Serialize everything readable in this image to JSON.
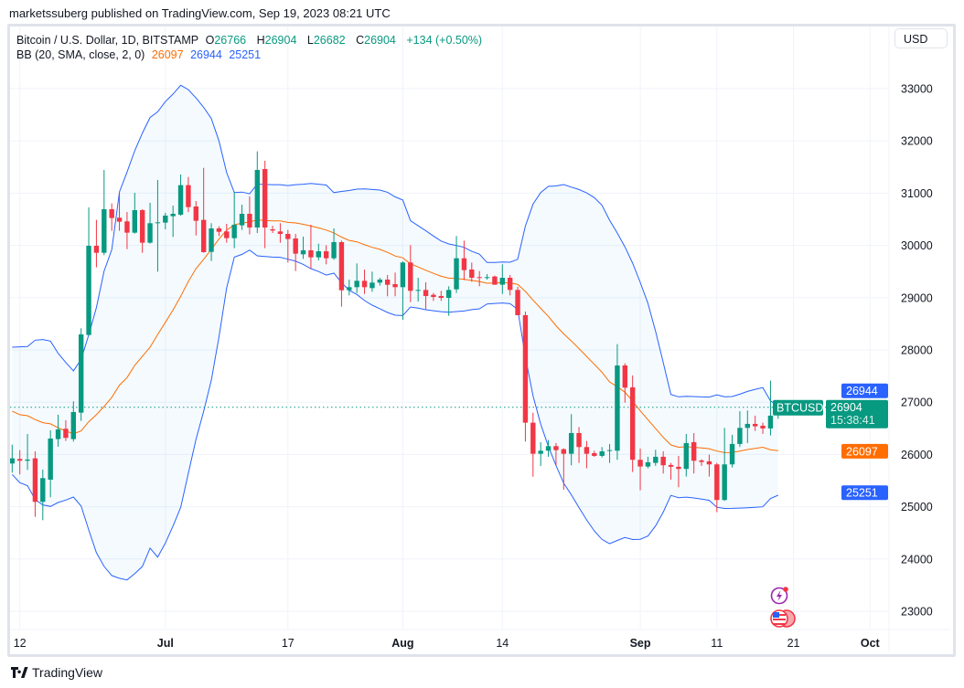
{
  "publisher_line": "marketssuberg published on TradingView.com, Sep 19, 2023 08:21 UTC",
  "legend": {
    "symbol": "Bitcoin / U.S. Dollar, 1D, BITSTAMP",
    "o_label": "O",
    "o_value": "26766",
    "h_label": "H",
    "h_value": "26904",
    "l_label": "L",
    "l_value": "26682",
    "c_label": "C",
    "c_value": "26904",
    "change": "+134 (+0.50%)",
    "bb_label": "BB (20, SMA, close, 2, 0)",
    "bb_basis": "26097",
    "bb_upper": "26944",
    "bb_lower": "25251"
  },
  "currency_button": "USD",
  "footer_logo": "TradingView",
  "colors": {
    "up": "#089981",
    "down": "#f23645",
    "basis": "#ff6d00",
    "band": "#2962ff",
    "band_fill": "#2196f3"
  },
  "icons": [
    "lightning-event-icon",
    "us-flag-economic-event-icon"
  ],
  "chart_data": {
    "type": "candlestick",
    "title": "",
    "symbol_tag": "BTCUSD",
    "last_price": "26904",
    "countdown": "15:38:41",
    "price_labels": {
      "bb_upper": "26944",
      "bb_basis": "26097",
      "bb_lower": "25251"
    },
    "ylim": [
      22700,
      33500
    ],
    "grid": true,
    "y_ticks": [
      23000,
      24000,
      25000,
      26000,
      27000,
      28000,
      29000,
      30000,
      31000,
      32000,
      33000
    ],
    "x_ticks": [
      {
        "label": "12",
        "date": "2023-06-12",
        "bold": false
      },
      {
        "label": "Jul",
        "date": "2023-07-01",
        "bold": true
      },
      {
        "label": "17",
        "date": "2023-07-17",
        "bold": false
      },
      {
        "label": "Aug",
        "date": "2023-08-01",
        "bold": true
      },
      {
        "label": "14",
        "date": "2023-08-14",
        "bold": false
      },
      {
        "label": "Sep",
        "date": "2023-09-01",
        "bold": true
      },
      {
        "label": "11",
        "date": "2023-09-11",
        "bold": false
      },
      {
        "label": "21",
        "date": "2023-09-21",
        "bold": false
      },
      {
        "label": "Oct",
        "date": "2023-10-01",
        "bold": true
      }
    ],
    "ohlc_columns": [
      "open",
      "high",
      "low",
      "close"
    ],
    "start_date": "2023-06-11",
    "candles": [
      [
        25827,
        26188,
        25652,
        25926
      ],
      [
        25914,
        26083,
        25617,
        25880
      ],
      [
        25880,
        26392,
        25705,
        25903
      ],
      [
        25926,
        26060,
        24807,
        25093
      ],
      [
        25093,
        25711,
        24743,
        25547
      ],
      [
        25518,
        26462,
        25180,
        26305
      ],
      [
        26294,
        26760,
        26148,
        26480
      ],
      [
        26492,
        26655,
        26258,
        26317
      ],
      [
        26294,
        27016,
        26247,
        26812
      ],
      [
        26800,
        28414,
        26643,
        28298
      ],
      [
        28286,
        30727,
        28274,
        29993
      ],
      [
        29993,
        30489,
        29580,
        29859
      ],
      [
        29859,
        31444,
        29813,
        30693
      ],
      [
        30693,
        30803,
        30279,
        30524
      ],
      [
        30530,
        31025,
        30279,
        30454
      ],
      [
        30460,
        30640,
        29929,
        30244
      ],
      [
        30244,
        31007,
        30226,
        30675
      ],
      [
        30675,
        30693,
        29859,
        30052
      ],
      [
        30052,
        30815,
        30034,
        30425
      ],
      [
        30425,
        31252,
        29498,
        30442
      ],
      [
        30436,
        30623,
        30308,
        30570
      ],
      [
        30559,
        30763,
        30162,
        30605
      ],
      [
        30588,
        31357,
        30570,
        31153
      ],
      [
        31153,
        31310,
        30635,
        30733
      ],
      [
        30745,
        30850,
        30191,
        30471
      ],
      [
        30489,
        31485,
        29860,
        29871
      ],
      [
        29877,
        30425,
        29702,
        30325
      ],
      [
        30325,
        30366,
        30180,
        30261
      ],
      [
        30267,
        30413,
        30052,
        30139
      ],
      [
        30139,
        31025,
        29947,
        30396
      ],
      [
        30384,
        30780,
        30296,
        30605
      ],
      [
        30605,
        30937,
        30209,
        30343
      ],
      [
        30343,
        31800,
        30238,
        31444
      ],
      [
        31462,
        31619,
        29947,
        30343
      ],
      [
        30308,
        30378,
        30238,
        30285
      ],
      [
        30267,
        30425,
        30052,
        30220
      ],
      [
        30220,
        30296,
        29673,
        30122
      ],
      [
        30133,
        30220,
        29510,
        29842
      ],
      [
        29830,
        30168,
        29743,
        29906
      ],
      [
        29906,
        30396,
        29550,
        29772
      ],
      [
        29772,
        30034,
        29714,
        29888
      ],
      [
        29888,
        30005,
        29638,
        29754
      ],
      [
        29754,
        30325,
        29725,
        30063
      ],
      [
        30063,
        30092,
        28828,
        29142
      ],
      [
        29142,
        29346,
        29043,
        29201
      ],
      [
        29201,
        29655,
        29090,
        29323
      ],
      [
        29323,
        29539,
        29073,
        29201
      ],
      [
        29183,
        29498,
        29113,
        29288
      ],
      [
        29288,
        29381,
        29230,
        29346
      ],
      [
        29346,
        29434,
        29026,
        29247
      ],
      [
        29259,
        29480,
        29026,
        29201
      ],
      [
        29201,
        29696,
        28577,
        29673
      ],
      [
        29673,
        30005,
        28915,
        29131
      ],
      [
        29131,
        29381,
        28927,
        29148
      ],
      [
        29148,
        29294,
        28781,
        29032
      ],
      [
        29055,
        29090,
        28938,
        29014
      ],
      [
        29032,
        29131,
        28938,
        28997
      ],
      [
        28997,
        29218,
        28653,
        29148
      ],
      [
        29160,
        30180,
        29090,
        29754
      ],
      [
        29754,
        30092,
        29335,
        29527
      ],
      [
        29539,
        29673,
        29306,
        29381
      ],
      [
        29393,
        29510,
        29218,
        29376
      ],
      [
        29376,
        29451,
        29347,
        29393
      ],
      [
        29405,
        29422,
        29248,
        29248
      ],
      [
        29248,
        29638,
        29073,
        29381
      ],
      [
        29381,
        29434,
        29043,
        29148
      ],
      [
        29148,
        29207,
        28665,
        28665
      ],
      [
        28665,
        28735,
        26247,
        26608
      ],
      [
        26608,
        26800,
        25576,
        26013
      ],
      [
        26013,
        26235,
        25780,
        26072
      ],
      [
        26072,
        26276,
        25955,
        26159
      ],
      [
        26159,
        26218,
        25792,
        26083
      ],
      [
        26101,
        26118,
        25326,
        26013
      ],
      [
        26013,
        26771,
        25792,
        26410
      ],
      [
        26410,
        26526,
        25839,
        26142
      ],
      [
        26142,
        26258,
        25734,
        26013
      ],
      [
        26025,
        26072,
        25955,
        25973
      ],
      [
        25973,
        26142,
        25944,
        26060
      ],
      [
        26072,
        26200,
        25839,
        26083
      ],
      [
        26072,
        28111,
        25897,
        27703
      ],
      [
        27703,
        27744,
        26992,
        27278
      ],
      [
        27284,
        27512,
        25665,
        25898
      ],
      [
        25898,
        26113,
        25315,
        25769
      ],
      [
        25769,
        25956,
        25735,
        25851
      ],
      [
        25839,
        26090,
        25781,
        25956
      ],
      [
        25956,
        26061,
        25636,
        25793
      ],
      [
        25799,
        25839,
        25519,
        25764
      ],
      [
        25764,
        25973,
        25373,
        25723
      ],
      [
        25723,
        26393,
        25577,
        26218
      ],
      [
        26236,
        26410,
        25636,
        25880
      ],
      [
        25886,
        25909,
        25781,
        25857
      ],
      [
        25869,
        25997,
        25577,
        25810
      ],
      [
        25810,
        25839,
        24895,
        25129
      ],
      [
        25129,
        26509,
        25111,
        25810
      ],
      [
        25810,
        26376,
        25752,
        26201
      ],
      [
        26201,
        26830,
        26143,
        26509
      ],
      [
        26509,
        26842,
        26218,
        26585
      ],
      [
        26585,
        26743,
        26451,
        26539
      ],
      [
        26550,
        26609,
        26393,
        26498
      ],
      [
        26498,
        27413,
        26364,
        26743
      ],
      [
        26766,
        26904,
        26682,
        26904
      ]
    ],
    "bollinger": {
      "period": 20,
      "mult": 2,
      "first_19_upper": [
        28053,
        28060,
        28065,
        28187,
        28199,
        28170,
        27937,
        27760,
        27599,
        27820,
        28286,
        28811,
        29510,
        29918,
        31025,
        31404,
        31812,
        32150,
        32450
      ],
      "first_19_basis": [
        26830,
        26760,
        26742,
        26667,
        26608,
        26585,
        26510,
        26451,
        26393,
        26451,
        26626,
        26760,
        26917,
        27092,
        27325,
        27471,
        27704,
        27879,
        28053
      ],
      "first_19_lower": [
        25617,
        25460,
        25402,
        25140,
        25035,
        25006,
        25081,
        25128,
        25186,
        25012,
        24557,
        24120,
        23858,
        23683,
        23630,
        23600,
        23718,
        23858,
        24208
      ]
    }
  }
}
